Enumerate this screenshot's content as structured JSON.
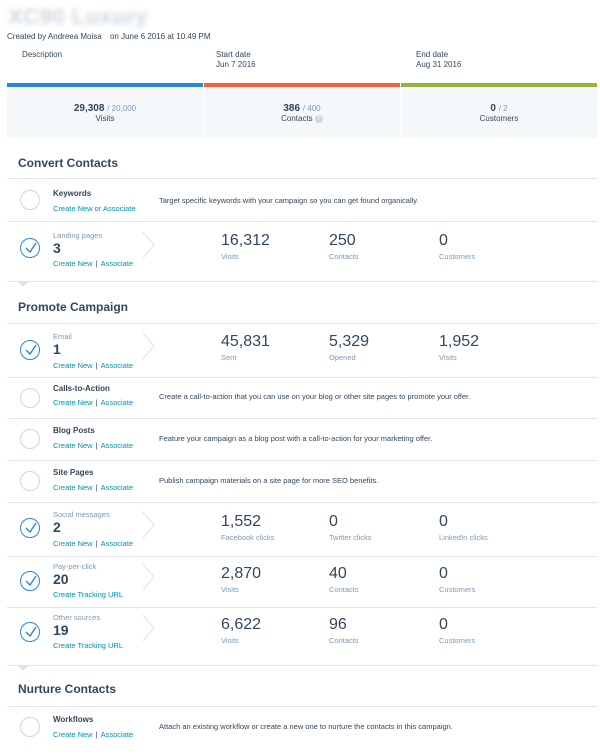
{
  "header": {
    "title": "XC90 Luxury",
    "created_by": "Created by Andreea Moisa",
    "created_on": "on June 6 2016 at 10.49 PM"
  },
  "meta": {
    "description_label": "Description",
    "start_label": "Start date",
    "start_value": "Jun 7 2016",
    "end_label": "End date",
    "end_value": "Aug 31 2016"
  },
  "stats": [
    {
      "value": "29,308",
      "goal": "/ 20,000",
      "label": "Visits",
      "color": "#2c86d1"
    },
    {
      "value": "386",
      "goal": "/ 400",
      "label": "Contacts",
      "color": "#f0643c"
    },
    {
      "value": "0",
      "goal": "/ 2",
      "label": "Customers",
      "color": "#95b33c"
    }
  ],
  "colors": {
    "check": "#2c86d1",
    "link": "#0091ae"
  },
  "sections": {
    "convert": {
      "title": "Convert Contacts",
      "keywords": {
        "name": "Keywords",
        "link": "Create New or Associate",
        "desc": "Target specific keywords with your campaign so you can get found organically."
      },
      "landing": {
        "name": "Landing pages",
        "count": "3",
        "link1": "Create New",
        "sep": "|",
        "link2": "Associate",
        "metrics": [
          {
            "value": "16,312",
            "label": "Visits"
          },
          {
            "value": "250",
            "label": "Contacts"
          },
          {
            "value": "0",
            "label": "Customers"
          }
        ]
      }
    },
    "promote": {
      "title": "Promote Campaign",
      "email": {
        "name": "Email",
        "count": "1",
        "link1": "Create New",
        "sep": "|",
        "link2": "Associate",
        "metrics": [
          {
            "value": "45,831",
            "label": "Sent"
          },
          {
            "value": "5,329",
            "label": "Opened"
          },
          {
            "value": "1,952",
            "label": "Visits"
          }
        ]
      },
      "cta": {
        "name": "Calls-to-Action",
        "link1": "Create New",
        "sep": "|",
        "link2": "Associate",
        "desc": "Create a call-to-action that you can use on your blog or other site pages to promote your offer."
      },
      "blog": {
        "name": "Blog Posts",
        "link1": "Create New",
        "sep": "|",
        "link2": "Associate",
        "desc": "Feature your campaign as a blog post with a call-to-action for your marketing offer."
      },
      "site": {
        "name": "Site Pages",
        "link1": "Create New",
        "sep": "|",
        "link2": "Associate",
        "desc": "Publish campaign materials on a site page for more SEO benefits."
      },
      "social": {
        "name": "Social messages",
        "count": "2",
        "link1": "Create New",
        "sep": "|",
        "link2": "Associate",
        "metrics": [
          {
            "value": "1,552",
            "label": "Facebook clicks"
          },
          {
            "value": "0",
            "label": "Twitter clicks"
          },
          {
            "value": "0",
            "label": "LinkedIn clicks"
          }
        ]
      },
      "ppc": {
        "name": "Pay-per-click",
        "count": "20",
        "link": "Create Tracking URL",
        "metrics": [
          {
            "value": "2,870",
            "label": "Visits"
          },
          {
            "value": "40",
            "label": "Contacts"
          },
          {
            "value": "0",
            "label": "Customers"
          }
        ]
      },
      "other": {
        "name": "Other sources",
        "count": "19",
        "link": "Create Tracking URL",
        "metrics": [
          {
            "value": "6,622",
            "label": "Visits"
          },
          {
            "value": "96",
            "label": "Contacts"
          },
          {
            "value": "0",
            "label": "Customers"
          }
        ]
      }
    },
    "nurture": {
      "title": "Nurture Contacts",
      "workflows": {
        "name": "Workflows",
        "link1": "Create New",
        "sep": "|",
        "link2": "Associate",
        "desc": "Attach an existing workflow or create a new one to nurture the contacts in this campaign."
      }
    }
  }
}
